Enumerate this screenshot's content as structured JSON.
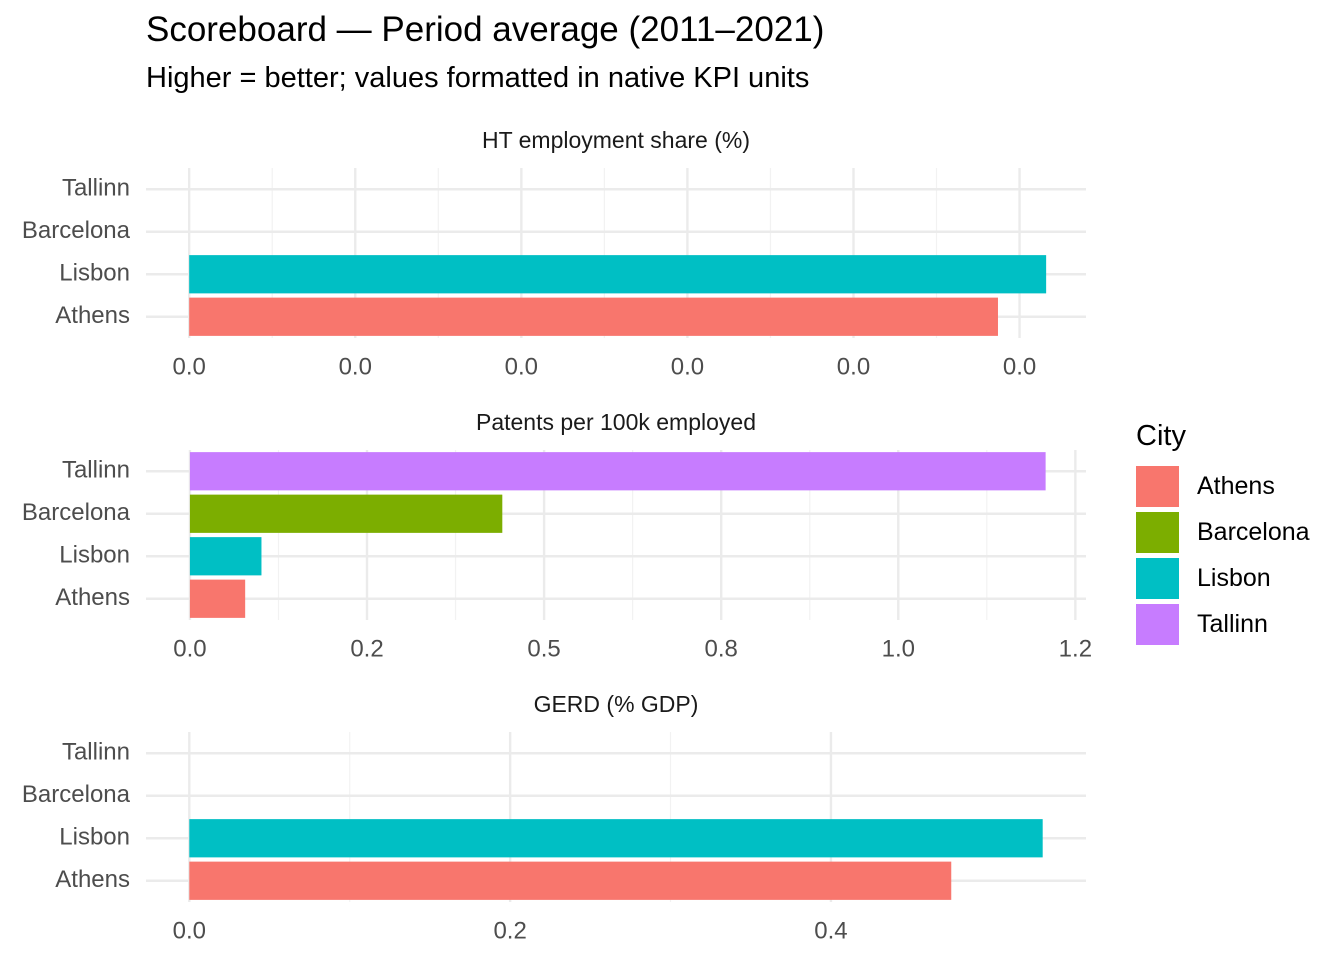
{
  "title": "Scoreboard — Period average (2011–2021)",
  "subtitle": "Higher = better; values formatted in native KPI units",
  "legend": {
    "title": "City",
    "items": [
      {
        "label": "Athens",
        "color": "#F8766D"
      },
      {
        "label": "Barcelona",
        "color": "#7CAE00"
      },
      {
        "label": "Lisbon",
        "color": "#00BFC4"
      },
      {
        "label": "Tallinn",
        "color": "#C77CFF"
      }
    ]
  },
  "chart_data": [
    {
      "type": "bar",
      "orientation": "horizontal",
      "title": "HT employment share (%)",
      "categories": [
        "Athens",
        "Lisbon",
        "Barcelona",
        "Tallinn"
      ],
      "values": [
        0.0487,
        0.0516,
        null,
        null
      ],
      "xlim": [
        -0.0026,
        0.054
      ],
      "tick_values": [
        0,
        0.01,
        0.02,
        0.03,
        0.04,
        0.05
      ],
      "tick_labels": [
        "0.0",
        "0.0",
        "0.0",
        "0.0",
        "0.0",
        "0.0"
      ],
      "grid": true
    },
    {
      "type": "bar",
      "orientation": "horizontal",
      "title": "Patents per 100k employed",
      "categories": [
        "Athens",
        "Lisbon",
        "Barcelona",
        "Tallinn"
      ],
      "values": [
        0.078,
        0.101,
        0.441,
        1.208
      ],
      "xlim": [
        -0.062,
        1.265
      ],
      "tick_values": [
        0,
        0.25,
        0.5,
        0.75,
        1.0,
        1.25
      ],
      "tick_labels": [
        "0.0",
        "0.2",
        "0.5",
        "0.8",
        "1.0",
        "1.2"
      ],
      "grid": true
    },
    {
      "type": "bar",
      "orientation": "horizontal",
      "title": "GERD (% GDP)",
      "categories": [
        "Athens",
        "Lisbon",
        "Barcelona",
        "Tallinn"
      ],
      "values": [
        0.475,
        0.532,
        null,
        null
      ],
      "xlim": [
        -0.027,
        0.559
      ],
      "tick_values": [
        0,
        0.2,
        0.4
      ],
      "tick_labels": [
        "0.0",
        "0.2",
        "0.4"
      ],
      "grid": true
    }
  ]
}
